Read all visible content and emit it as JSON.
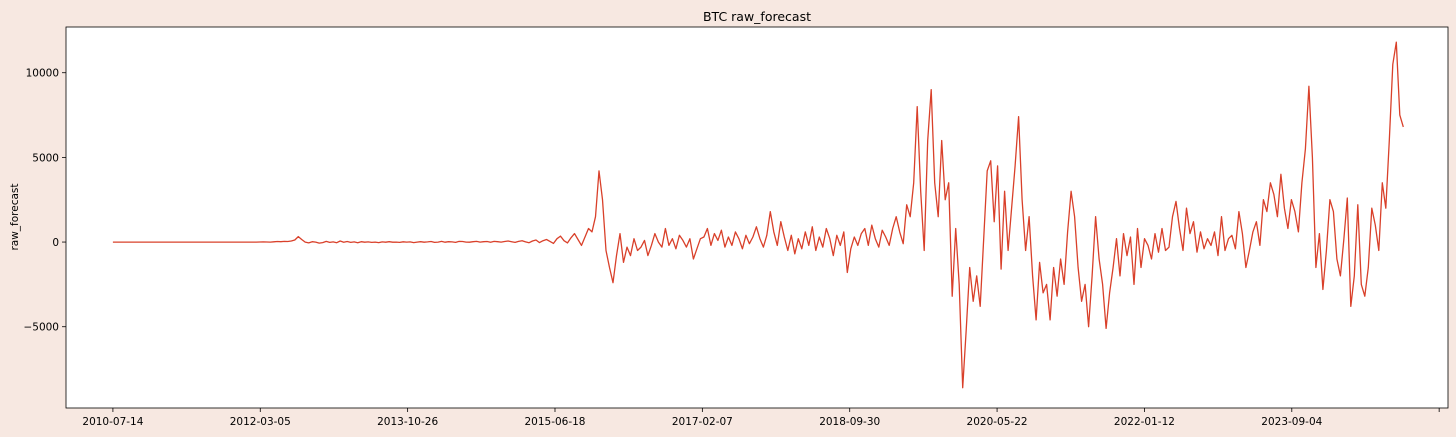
{
  "chart_data": {
    "type": "line",
    "title": "BTC raw_forecast",
    "xlabel": "",
    "ylabel": "raw_forecast",
    "x_start": "2010-07-14",
    "x_end": "2024-12-01",
    "xlim": [
      "2010-01-04",
      "2025-06-01"
    ],
    "ylim": [
      -9800,
      12700
    ],
    "x_ticks": [
      "2010-07-14",
      "2012-03-05",
      "2013-10-26",
      "2015-06-18",
      "2017-02-07",
      "2018-09-30",
      "2020-05-22",
      "2022-01-12",
      "2023-09-04",
      ""
    ],
    "y_ticks": [
      -5000,
      0,
      5000,
      10000
    ],
    "y_tick_labels": [
      "−5000",
      "0",
      "5000",
      "10000"
    ],
    "grid": false,
    "legend": "none",
    "line_color": "#d9402a",
    "series": [
      {
        "values": [
          0,
          0,
          0,
          0,
          0,
          0,
          0,
          0,
          0,
          0,
          0,
          0,
          0,
          0,
          0,
          0,
          0,
          0,
          0,
          0,
          0,
          0,
          0,
          0,
          0,
          0,
          0,
          0,
          0,
          0,
          0,
          0,
          0,
          0,
          0,
          0,
          0,
          0,
          0,
          0,
          0,
          0,
          5,
          10,
          5,
          0,
          15,
          30,
          20,
          40,
          30,
          60,
          120,
          320,
          150,
          0,
          -50,
          20,
          0,
          -60,
          -30,
          40,
          -20,
          10,
          -40,
          60,
          -10,
          30,
          -20,
          10,
          -40,
          20,
          -10,
          10,
          -20,
          0,
          -30,
          10,
          -10,
          20,
          -10,
          0,
          -20,
          15,
          -5,
          10,
          -30,
          0,
          20,
          -10,
          10,
          30,
          -20,
          0,
          40,
          -10,
          20,
          10,
          -20,
          40,
          30,
          0,
          -10,
          20,
          40,
          0,
          20,
          30,
          -10,
          40,
          20,
          0,
          30,
          60,
          20,
          -20,
          40,
          80,
          10,
          -40,
          60,
          120,
          -30,
          80,
          150,
          40,
          -80,
          200,
          350,
          80,
          -50,
          250,
          500,
          150,
          -200,
          300,
          800,
          600,
          1500,
          4200,
          2500,
          -500,
          -1500,
          -2400,
          -800,
          500,
          -1200,
          -300,
          -800,
          200,
          -500,
          -300,
          100,
          -800,
          -200,
          500,
          0,
          -300,
          800,
          -200,
          200,
          -400,
          400,
          100,
          -300,
          200,
          -1000,
          -400,
          200,
          300,
          800,
          -200,
          500,
          100,
          700,
          -300,
          300,
          -200,
          600,
          200,
          -400,
          400,
          -100,
          300,
          900,
          200,
          -300,
          400,
          1800,
          600,
          -200,
          1200,
          300,
          -500,
          400,
          -700,
          200,
          -400,
          600,
          -200,
          900,
          -500,
          300,
          -300,
          800,
          200,
          -800,
          400,
          -200,
          600,
          -1800,
          -400,
          300,
          -200,
          500,
          800,
          -200,
          1000,
          200,
          -300,
          700,
          300,
          -200,
          800,
          1500,
          600,
          -100,
          2200,
          1500,
          3500,
          8000,
          3000,
          -500,
          6000,
          9000,
          3500,
          1500,
          6000,
          2500,
          3500,
          -3200,
          800,
          -2500,
          -8600,
          -5200,
          -1500,
          -3500,
          -2000,
          -3800,
          200,
          4200,
          4800,
          1200,
          4500,
          -1600,
          3000,
          -500,
          2000,
          4500,
          7400,
          2500,
          -500,
          1500,
          -2000,
          -4600,
          -1200,
          -3000,
          -2500,
          -4600,
          -1500,
          -3200,
          -1000,
          -2500,
          600,
          3000,
          1500,
          -1500,
          -3500,
          -2500,
          -5000,
          -2000,
          1500,
          -1000,
          -2500,
          -5100,
          -3000,
          -1500,
          200,
          -2000,
          500,
          -800,
          300,
          -2500,
          800,
          -1500,
          200,
          -200,
          -1000,
          500,
          -600,
          800,
          -500,
          -300,
          1500,
          2400,
          800,
          -500,
          2000,
          500,
          1200,
          -600,
          600,
          -400,
          200,
          -200,
          600,
          -800,
          1500,
          -500,
          200,
          400,
          -400,
          1800,
          500,
          -1500,
          -500,
          600,
          1200,
          -200,
          2500,
          1800,
          3500,
          2800,
          1500,
          4000,
          2000,
          800,
          2500,
          1800,
          600,
          3500,
          5500,
          9200,
          5000,
          -1500,
          500,
          -2800,
          -500,
          2500,
          1800,
          -1000,
          -2000,
          200,
          2600,
          -3800,
          -2000,
          2200,
          -2500,
          -3200,
          -1500,
          2000,
          1000,
          -500,
          3500,
          2000,
          6000,
          10500,
          11800,
          7500,
          6800
        ]
      }
    ]
  }
}
